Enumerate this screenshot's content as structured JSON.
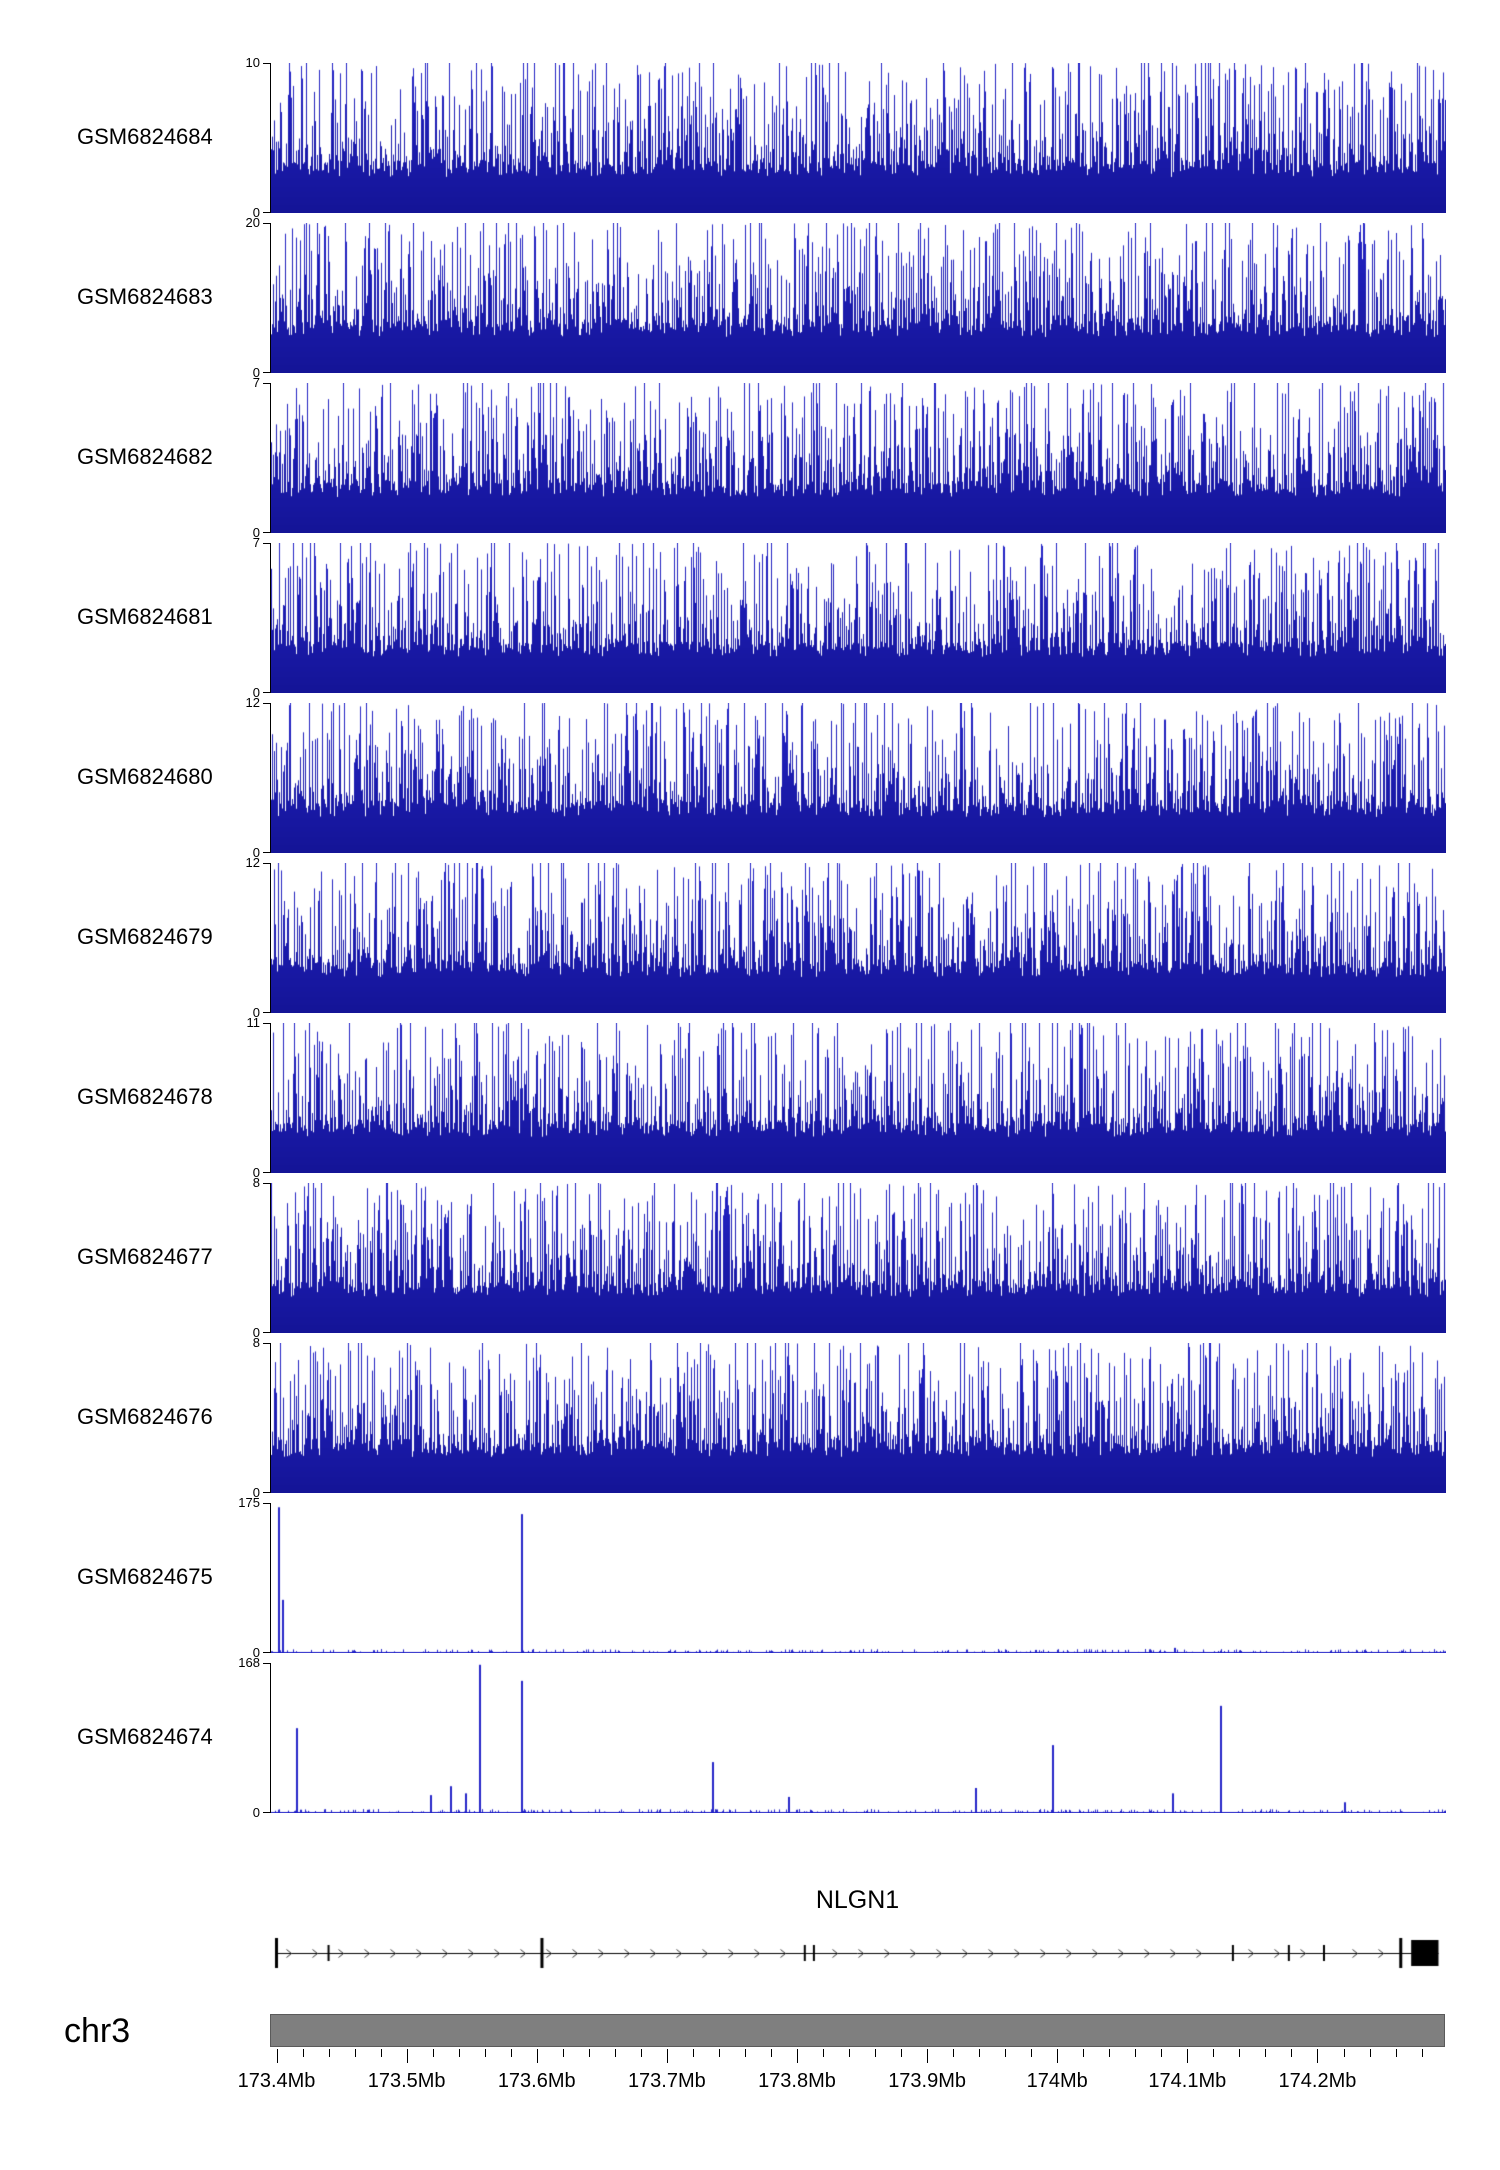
{
  "chart_data": {
    "type": "area",
    "subtype": "genome-coverage-tracks",
    "chromosome": "chr3",
    "region_mb": {
      "start": 173.395,
      "end": 174.298
    },
    "x_ticks": [
      {
        "mb": 173.4,
        "label": "173.4Mb"
      },
      {
        "mb": 173.5,
        "label": "173.5Mb"
      },
      {
        "mb": 173.6,
        "label": "173.6Mb"
      },
      {
        "mb": 173.7,
        "label": "173.7Mb"
      },
      {
        "mb": 173.8,
        "label": "173.8Mb"
      },
      {
        "mb": 173.9,
        "label": "173.9Mb"
      },
      {
        "mb": 174.0,
        "label": "174Mb"
      },
      {
        "mb": 174.1,
        "label": "174.1Mb"
      },
      {
        "mb": 174.2,
        "label": "174.2Mb"
      }
    ],
    "minor_tick_step_mb": 0.02,
    "track_color": "#2424c8",
    "ideogram_color": "#7f7f7f",
    "tracks": [
      {
        "name": "GSM6824684",
        "ymin": 0,
        "ymax": 10,
        "pattern": "dense"
      },
      {
        "name": "GSM6824683",
        "ymin": 0,
        "ymax": 20,
        "pattern": "dense"
      },
      {
        "name": "GSM6824682",
        "ymin": 0,
        "ymax": 7,
        "pattern": "dense"
      },
      {
        "name": "GSM6824681",
        "ymin": 0,
        "ymax": 7,
        "pattern": "dense"
      },
      {
        "name": "GSM6824680",
        "ymin": 0,
        "ymax": 12,
        "pattern": "dense"
      },
      {
        "name": "GSM6824679",
        "ymin": 0,
        "ymax": 12,
        "pattern": "dense"
      },
      {
        "name": "GSM6824678",
        "ymin": 0,
        "ymax": 11,
        "pattern": "dense"
      },
      {
        "name": "GSM6824677",
        "ymin": 0,
        "ymax": 8,
        "pattern": "dense"
      },
      {
        "name": "GSM6824676",
        "ymin": 0,
        "ymax": 8,
        "pattern": "dense"
      },
      {
        "name": "GSM6824675",
        "ymin": 0,
        "ymax": 175,
        "pattern": "sparse",
        "spikes": [
          {
            "mb": 173.401,
            "value": 170
          },
          {
            "mb": 173.404,
            "value": 62
          },
          {
            "mb": 173.588,
            "value": 162
          },
          {
            "mb": 173.93,
            "value": 4
          },
          {
            "mb": 174.09,
            "value": 6
          }
        ]
      },
      {
        "name": "GSM6824674",
        "ymin": 0,
        "ymax": 168,
        "pattern": "sparse",
        "spikes": [
          {
            "mb": 173.415,
            "value": 95
          },
          {
            "mb": 173.518,
            "value": 20
          },
          {
            "mb": 173.533,
            "value": 30
          },
          {
            "mb": 173.545,
            "value": 22
          },
          {
            "mb": 173.556,
            "value": 166
          },
          {
            "mb": 173.588,
            "value": 148
          },
          {
            "mb": 173.735,
            "value": 57
          },
          {
            "mb": 173.793,
            "value": 18
          },
          {
            "mb": 173.937,
            "value": 28
          },
          {
            "mb": 173.996,
            "value": 76
          },
          {
            "mb": 174.088,
            "value": 22
          },
          {
            "mb": 174.125,
            "value": 120
          },
          {
            "mb": 174.22,
            "value": 12
          }
        ]
      }
    ],
    "gene_track": {
      "gene": "NLGN1",
      "strand": "right",
      "exons": [
        {
          "mb": 173.4,
          "size": "large"
        },
        {
          "mb": 173.44,
          "size": "small"
        },
        {
          "mb": 173.604,
          "size": "large"
        },
        {
          "mb": 173.806,
          "size": "small"
        },
        {
          "mb": 173.813,
          "size": "small"
        },
        {
          "mb": 174.135,
          "size": "small"
        },
        {
          "mb": 174.178,
          "size": "small"
        },
        {
          "mb": 174.205,
          "size": "small"
        },
        {
          "mb": 174.264,
          "size": "large"
        }
      ],
      "terminal_exon_mb": {
        "start": 174.272,
        "end": 174.293
      }
    }
  }
}
